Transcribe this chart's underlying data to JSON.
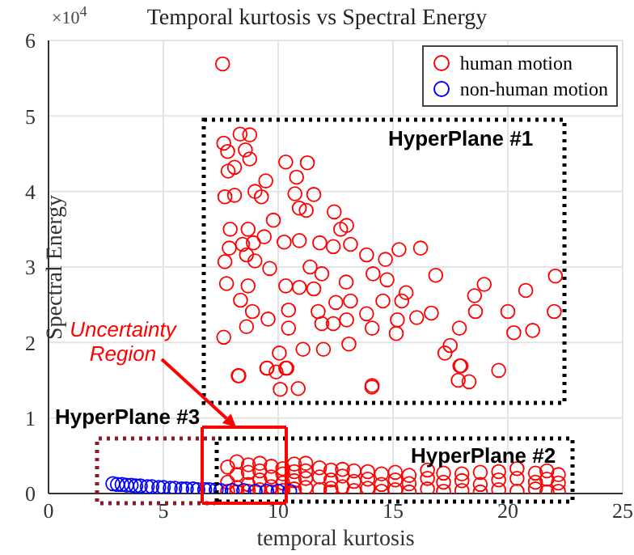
{
  "chart_data": {
    "type": "scatter",
    "title": "Temporal kurtosis vs Spectral Energy",
    "xlabel": "temporal kurtosis",
    "ylabel": "Spectral Energy",
    "xlim": [
      0,
      25
    ],
    "xticks": [
      0,
      5,
      10,
      15,
      20,
      25
    ],
    "ylim": [
      0,
      6
    ],
    "yticks": [
      0,
      1,
      2,
      3,
      4,
      5,
      6
    ],
    "grid": true,
    "legend": "top right",
    "marker": "circle",
    "annotations": [
      "×10$^{4}$",
      "HyperPlane #1",
      "HyperPlane #2",
      "HyperPlane #3",
      "Uncertainty Region"
    ],
    "series": [
      {
        "name": "human motion",
        "color": "#ff0000",
        "x": [
          7.58,
          7.63,
          8.34,
          8.76,
          7.8,
          8.57,
          8.76,
          7.82,
          8.1,
          7.68,
          8.1,
          8.99,
          9.46,
          9.27,
          10.33,
          11.27,
          10.8,
          10.73,
          11.55,
          10.92,
          11.22,
          12.44,
          12.98,
          12.72,
          9.79,
          7.91,
          8.69,
          9.39,
          7.87,
          8.45,
          8.92,
          10.26,
          10.92,
          11.81,
          12.4,
          13.15,
          13.85,
          14.67,
          15.26,
          16.2,
          7.68,
          8.62,
          9.63,
          8.99,
          11.39,
          11.9,
          12.96,
          14.13,
          14.74,
          16.86,
          22.07,
          7.75,
          8.69,
          10.33,
          10.92,
          11.55,
          12.51,
          13.15,
          14.56,
          15.38,
          15.57,
          18.55,
          18.97,
          20.0,
          20.78,
          22.02,
          8.36,
          8.88,
          9.56,
          10.45,
          11.74,
          12.98,
          13.85,
          15.19,
          16.03,
          16.67,
          18.59,
          7.63,
          8.62,
          10.45,
          11.9,
          12.4,
          14.09,
          15.14,
          17.89,
          20.26,
          21.08,
          10.05,
          11.08,
          11.97,
          13.08,
          17.49,
          17.26,
          9.51,
          10.38,
          17.91,
          19.6,
          8.26,
          9.91,
          17.84,
          14.09,
          8.29,
          9.51,
          10.33,
          10.09,
          10.87,
          14.08,
          17.96,
          18.31,
          7.8,
          7.8,
          7.8,
          8.2,
          8.2,
          8.2,
          8.2,
          8.7,
          8.7,
          8.7,
          8.7,
          9.2,
          9.2,
          9.2,
          9.2,
          9.7,
          9.7,
          9.7,
          9.7,
          10.2,
          10.2,
          10.2,
          10.2,
          10.7,
          10.7,
          10.7,
          10.7,
          10.7,
          11.2,
          11.2,
          11.2,
          11.2,
          11.8,
          11.8,
          11.8,
          12.3,
          12.3,
          12.3,
          12.3,
          12.8,
          12.8,
          12.8,
          13.3,
          13.3,
          13.3,
          13.9,
          13.9,
          13.9,
          14.5,
          14.5,
          14.5,
          15.1,
          15.1,
          15.1,
          15.7,
          15.7,
          15.7,
          16.5,
          16.5,
          16.5,
          17.2,
          17.2,
          17.2,
          18.0,
          18.0,
          18.0,
          18.8,
          18.8,
          18.8,
          19.6,
          19.6,
          19.6,
          20.4,
          20.4,
          20.4,
          21.2,
          21.2,
          21.2,
          21.7,
          21.7,
          21.7,
          22.2,
          22.2,
          22.2
        ],
        "values": [
          5.69,
          4.64,
          4.76,
          4.75,
          4.53,
          4.55,
          4.43,
          4.27,
          4.32,
          3.93,
          3.95,
          4.0,
          4.14,
          3.93,
          4.39,
          4.38,
          4.19,
          3.97,
          3.96,
          3.78,
          3.75,
          3.73,
          3.55,
          3.5,
          3.62,
          3.5,
          3.5,
          3.4,
          3.25,
          3.3,
          3.32,
          3.33,
          3.35,
          3.32,
          3.27,
          3.3,
          3.16,
          3.1,
          3.23,
          3.25,
          3.07,
          3.16,
          2.98,
          3.08,
          3.0,
          2.91,
          2.8,
          2.91,
          2.83,
          2.89,
          2.88,
          2.78,
          2.75,
          2.75,
          2.73,
          2.71,
          2.53,
          2.55,
          2.55,
          2.55,
          2.66,
          2.62,
          2.77,
          2.41,
          2.69,
          2.41,
          2.56,
          2.41,
          2.31,
          2.43,
          2.41,
          2.3,
          2.38,
          2.3,
          2.33,
          2.39,
          2.41,
          2.07,
          2.21,
          2.19,
          2.25,
          2.25,
          2.19,
          2.12,
          2.19,
          2.13,
          2.16,
          1.86,
          1.91,
          1.91,
          1.98,
          1.96,
          1.86,
          1.66,
          1.66,
          1.69,
          1.63,
          1.56,
          1.61,
          1.5,
          1.43,
          1.56,
          1.66,
          1.66,
          1.38,
          1.39,
          1.41,
          1.69,
          1.48,
          0.35,
          0.15,
          0.03,
          0.42,
          0.25,
          0.08,
          0.02,
          0.38,
          0.28,
          0.12,
          0.03,
          0.4,
          0.3,
          0.18,
          0.05,
          0.36,
          0.22,
          0.09,
          0.02,
          0.33,
          0.26,
          0.14,
          0.04,
          0.39,
          0.29,
          0.17,
          0.06,
          0.01,
          0.4,
          0.3,
          0.2,
          0.08,
          0.34,
          0.22,
          0.05,
          0.31,
          0.18,
          0.07,
          0.02,
          0.32,
          0.23,
          0.09,
          0.3,
          0.16,
          0.04,
          0.29,
          0.19,
          0.07,
          0.26,
          0.12,
          0.03,
          0.28,
          0.18,
          0.05,
          0.24,
          0.13,
          0.02,
          0.31,
          0.2,
          0.06,
          0.27,
          0.15,
          0.03,
          0.26,
          0.17,
          0.04,
          0.28,
          0.12,
          0.02,
          0.29,
          0.18,
          0.05,
          0.33,
          0.2,
          0.03,
          0.27,
          0.15,
          0.06,
          0.3,
          0.19,
          0.02,
          0.25,
          0.14,
          0.03
        ]
      },
      {
        "name": "non-human motion",
        "color": "#0000ff",
        "x": [
          2.8,
          3.0,
          3.2,
          3.4,
          3.6,
          3.8,
          4.0,
          4.3,
          4.5,
          4.8,
          5.0,
          5.3,
          5.5,
          5.8,
          6.0,
          6.3,
          6.5,
          6.8,
          7.0,
          7.3,
          7.5,
          8.0,
          8.5,
          9.0,
          9.5,
          10.0,
          10.5
        ],
        "values": [
          0.13,
          0.12,
          0.12,
          0.11,
          0.11,
          0.1,
          0.1,
          0.09,
          0.09,
          0.08,
          0.08,
          0.07,
          0.07,
          0.06,
          0.06,
          0.06,
          0.05,
          0.05,
          0.05,
          0.05,
          0.04,
          0.04,
          0.04,
          0.03,
          0.03,
          0.03,
          0.03
        ]
      }
    ]
  }
}
